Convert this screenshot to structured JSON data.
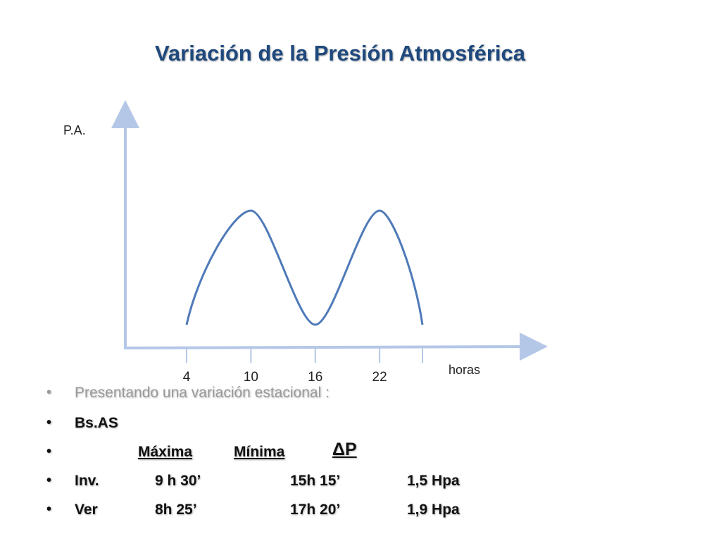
{
  "title": "Variación de la Presión Atmosférica",
  "chart_data": {
    "type": "line",
    "ylabel": "P.A.",
    "xlabel": "horas",
    "x_ticks": [
      "4",
      "10",
      "16",
      "22",
      ""
    ],
    "description_of_curve": "double-peaked daily pressure wave",
    "series": [
      {
        "x": [
          4,
          10,
          16,
          22,
          26
        ],
        "y": [
          0,
          1,
          0,
          1,
          0
        ]
      }
    ],
    "colors": {
      "axis": "#b4c7e7",
      "curve": "#4f7ab8"
    }
  },
  "bullets": {
    "intro": "Presentando una variación estacional :",
    "city": "Bs.AS",
    "header": {
      "max": "Máxima",
      "min": "Mínima",
      "delta": "ΔP"
    },
    "rows": [
      {
        "season": "Inv.",
        "max": "9 h 30’",
        "min": "15h 15’",
        "delta": "1,5 Hpa"
      },
      {
        "season": "Ver",
        "max": "8h 25’",
        "min": "17h 20’",
        "delta": "1,9 Hpa"
      }
    ]
  }
}
